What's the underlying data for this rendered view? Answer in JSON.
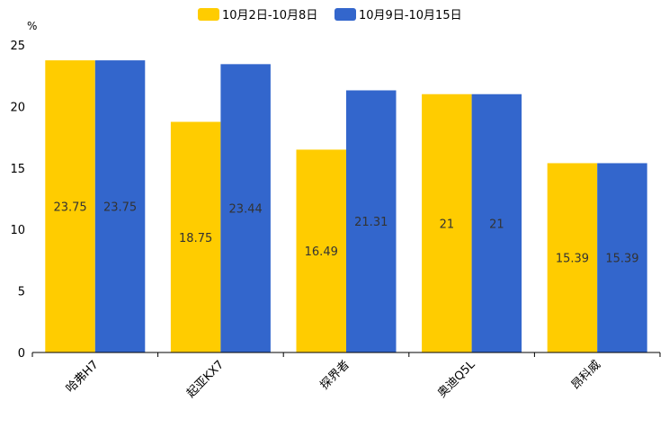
{
  "chart_data": {
    "type": "bar",
    "title": "",
    "xlabel": "",
    "ylabel": "",
    "unit": "%",
    "ylim": [
      0,
      25
    ],
    "yticks": [
      0,
      5,
      10,
      15,
      20,
      25
    ],
    "categories": [
      "哈弗H7",
      "起亚KX7",
      "探界者",
      "奥迪Q5L",
      "昂科威"
    ],
    "series": [
      {
        "name": "10月2日-10月8日",
        "color": "#FFCC00",
        "values": [
          23.75,
          18.75,
          16.49,
          21,
          15.39
        ]
      },
      {
        "name": "10月9日-10月15日",
        "color": "#3366CC",
        "values": [
          23.75,
          23.44,
          21.31,
          21,
          15.39
        ]
      }
    ],
    "legend_position": "top",
    "grid": false
  }
}
